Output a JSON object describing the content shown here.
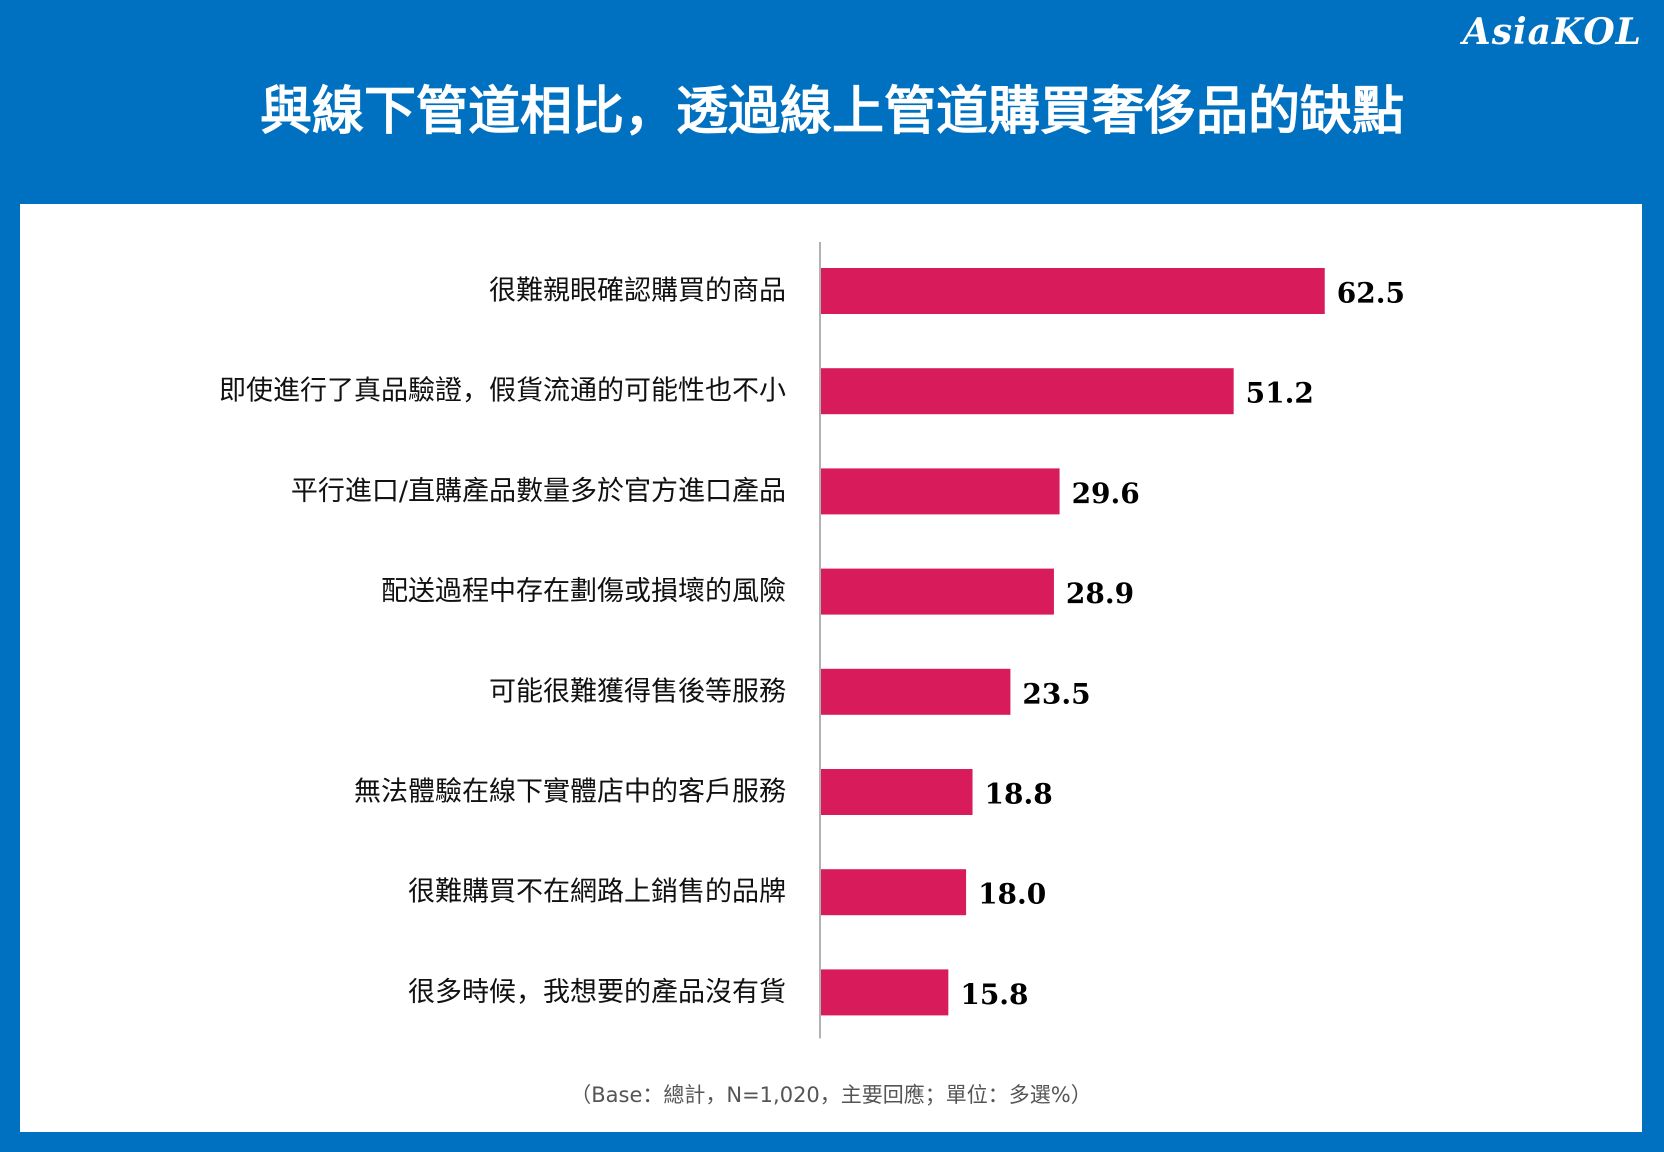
{
  "title": "與線下管道相比，透過線上管道購買奢侈品的缺點",
  "logo_text": "AsiaKOL",
  "footnote": "（Base：總計，N=1,020，主要回應；單位：多選%）",
  "colors": {
    "background": "#0070c0",
    "panel": "#ffffff",
    "bar": "#d81b5a",
    "axis": "#999999",
    "label": "#111111"
  },
  "chart_data": {
    "type": "bar",
    "orientation": "horizontal",
    "categories": [
      "很難親眼確認購買的商品",
      "即使進行了真品驗證，假貨流通的可能性也不小",
      "平行進口/直購產品數量多於官方進口產品",
      "配送過程中存在劃傷或損壞的風險",
      "可能很難獲得售後等服務",
      "無法體驗在線下實體店中的客戶服務",
      "很難購買不在網路上銷售的品牌",
      "很多時候，我想要的產品沒有貨"
    ],
    "values": [
      62.5,
      51.2,
      29.6,
      28.9,
      23.5,
      18.8,
      18.0,
      15.8
    ],
    "value_labels": [
      "62.5",
      "51.2",
      "29.6",
      "28.9",
      "23.5",
      "18.8",
      "18.0",
      "15.8"
    ],
    "xlim": [
      0,
      100
    ],
    "grid": false,
    "legend": "none"
  }
}
